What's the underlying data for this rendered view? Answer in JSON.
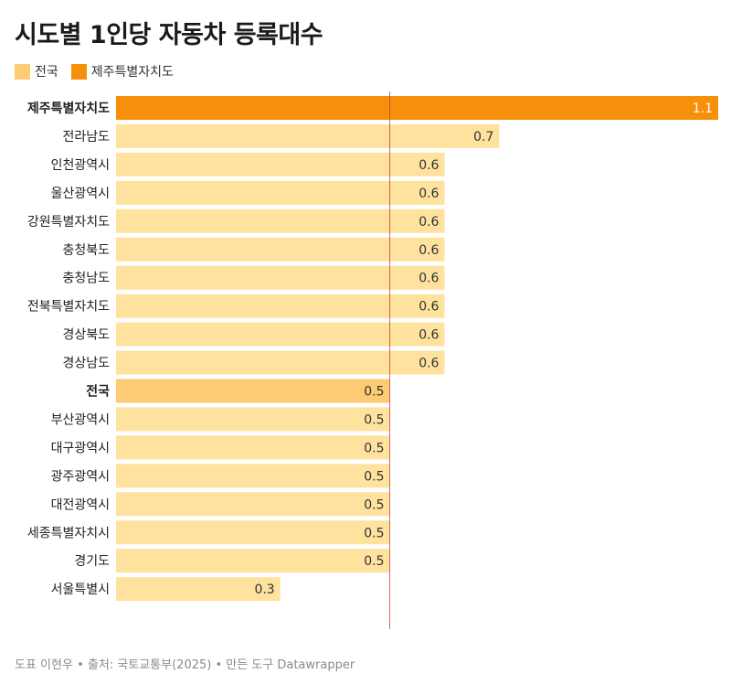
{
  "title": "시도별 1인당 자동차 등록대수",
  "legend": [
    {
      "label": "전국",
      "color": "#fdcb73"
    },
    {
      "label": "제주특별자치도",
      "color": "#f68f0a"
    }
  ],
  "colors": {
    "default_bar": "#fee29e",
    "national_bar": "#fdcb73",
    "jeju_bar": "#f68f0a",
    "reference_line": "#c0392b"
  },
  "footer": "도표 이현우 • 출처: 국토교통부(2025) • 만든 도구 Datawrapper",
  "chart_data": {
    "type": "bar",
    "orientation": "horizontal",
    "categories": [
      "제주특별자치도",
      "전라남도",
      "인천광역시",
      "울산광역시",
      "강원특별자치도",
      "충청북도",
      "충청남도",
      "전북특별자치도",
      "경상북도",
      "경상남도",
      "전국",
      "부산광역시",
      "대구광역시",
      "광주광역시",
      "대전광역시",
      "세종특별자치시",
      "경기도",
      "서울특별시"
    ],
    "values": [
      1.1,
      0.7,
      0.6,
      0.6,
      0.6,
      0.6,
      0.6,
      0.6,
      0.6,
      0.6,
      0.5,
      0.5,
      0.5,
      0.5,
      0.5,
      0.5,
      0.5,
      0.3
    ],
    "value_labels": [
      "1.1",
      "0.7",
      "0.6",
      "0.6",
      "0.6",
      "0.6",
      "0.6",
      "0.6",
      "0.6",
      "0.6",
      "0.5",
      "0.5",
      "0.5",
      "0.5",
      "0.5",
      "0.5",
      "0.5",
      "0.3"
    ],
    "highlight": {
      "제주특별자치도": "jeju",
      "전국": "national"
    },
    "bold_categories": [
      "제주특별자치도",
      "전국"
    ],
    "reference_line": 0.5,
    "xlim": [
      0,
      1.1
    ]
  }
}
